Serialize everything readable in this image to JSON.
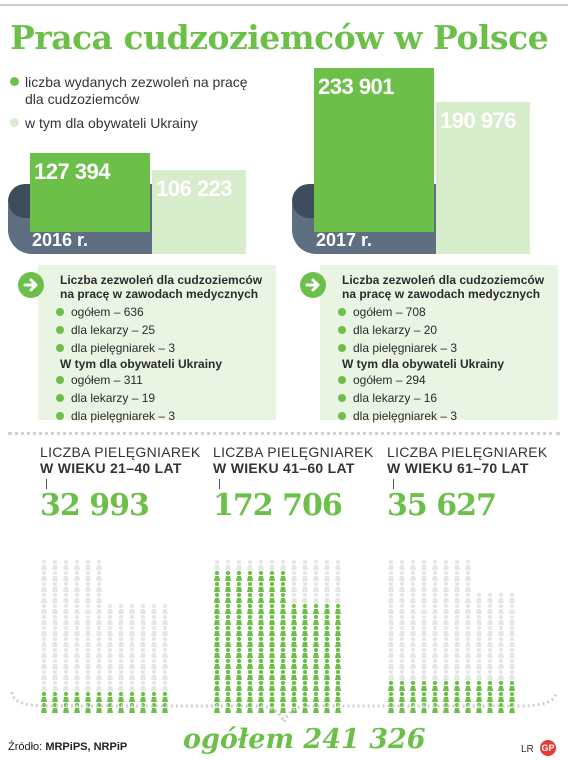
{
  "title": "Praca cudzoziemców w Polsce",
  "legend": {
    "item1": "liczba wydanych zezwoleń na pracę dla cudzoziemców",
    "item1_line1": "liczba wydanych zezwoleń na pracę",
    "item1_line2": "dla cudzoziemców",
    "item2": "w tym dla obywateli Ukrainy"
  },
  "colors": {
    "accent": "#6cc04a",
    "light": "#d6ecca",
    "band": "#5d6f80",
    "box": "#eaf4e3"
  },
  "chart_data": [
    {
      "type": "bar",
      "title": "Praca cudzoziemców w Polsce",
      "categories": [
        "2016 r.",
        "2017 r."
      ],
      "series": [
        {
          "name": "liczba wydanych zezwoleń na pracę dla cudzoziemców",
          "values": [
            127394,
            233901
          ]
        },
        {
          "name": "w tym dla obywateli Ukrainy",
          "values": [
            106223,
            190976
          ]
        }
      ],
      "labels": {
        "2016_total": "127 394",
        "2016_ukr": "106 223",
        "2017_total": "233 901",
        "2017_ukr": "190 976"
      },
      "ylim": [
        0,
        233901
      ]
    },
    {
      "type": "table",
      "title": "Liczba zezwoleń dla cudzoziemców na pracę w zawodach medycznych",
      "years": [
        {
          "year": "2016 r.",
          "head1_line1": "Liczba zezwoleń dla cudzoziemców",
          "head1_line2": "na pracę w zawodach medycznych",
          "all": [
            "ogółem – 636",
            "dla lekarzy – 25",
            "dla pielęgniarek – 3"
          ],
          "head2": "W tym dla obywateli Ukrainy",
          "ukraine": [
            "ogółem – 311",
            "dla lekarzy – 19",
            "dla pielęgniarek – 3"
          ]
        },
        {
          "year": "2017 r.",
          "head1_line1": "Liczba zezwoleń dla cudzoziemców",
          "head1_line2": "na pracę w zawodach medycznych",
          "all": [
            "ogółem – 708",
            "dla lekarzy – 20",
            "dla pielęgniarek – 3"
          ],
          "head2": "W tym dla obywateli Ukrainy",
          "ukraine": [
            "ogółem – 294",
            "dla lekarzy – 16",
            "dla pielęgniarek – 3"
          ]
        }
      ]
    },
    {
      "type": "bar",
      "title": "LICZBA PIELĘGNIAREK",
      "categories": [
        "W WIEKU 21–40 LAT",
        "W WIEKU 41–60 LAT",
        "W WIEKU 61–70 LAT"
      ],
      "values": [
        32993,
        172706,
        35627
      ],
      "value_labels": [
        "32 993",
        "172 706",
        "35 627"
      ],
      "label_line1": "LICZBA PIELĘGNIAREK",
      "total_label": "ogółem 241 326",
      "total": 241326
    }
  ],
  "source": {
    "prefix": "Źródło:",
    "names": "MRPiPS, NRPiP"
  },
  "credits": {
    "author": "LR",
    "logo": "GP"
  }
}
